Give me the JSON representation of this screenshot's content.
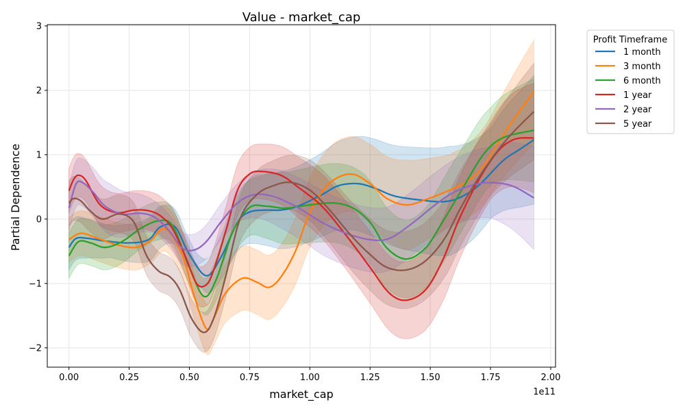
{
  "chart_data": {
    "type": "line",
    "title": "Value - market_cap",
    "xlabel": "market_cap",
    "ylabel": "Partial Dependence",
    "x_offset_text": "1e11",
    "xlim": [
      -0.09,
      2.02
    ],
    "ylim": [
      -2.3,
      3.02
    ],
    "x_ticks": [
      0.0,
      0.25,
      0.5,
      0.75,
      1.0,
      1.25,
      1.5,
      1.75,
      2.0
    ],
    "x_tick_labels": [
      "0.00",
      "0.25",
      "0.50",
      "0.75",
      "1.00",
      "1.25",
      "1.50",
      "1.75",
      "2.00"
    ],
    "y_ticks": [
      -2,
      -1,
      0,
      1,
      2,
      3
    ],
    "y_tick_labels": [
      "−2",
      "−1",
      "0",
      "1",
      "2",
      "3"
    ],
    "grid": true,
    "legend": {
      "title": "Profit Timeframe",
      "placement": "outside-right"
    },
    "series": [
      {
        "name": "1 month",
        "color": "#1f77b4",
        "points": [
          [
            0,
            -0.44
          ],
          [
            0.03,
            -0.3
          ],
          [
            0.08,
            -0.3
          ],
          [
            0.15,
            -0.34
          ],
          [
            0.25,
            -0.37
          ],
          [
            0.33,
            -0.32
          ],
          [
            0.38,
            -0.12
          ],
          [
            0.44,
            -0.12
          ],
          [
            0.5,
            -0.55
          ],
          [
            0.57,
            -0.88
          ],
          [
            0.63,
            -0.6
          ],
          [
            0.7,
            -0.05
          ],
          [
            0.75,
            0.11
          ],
          [
            0.82,
            0.14
          ],
          [
            0.88,
            0.14
          ],
          [
            0.95,
            0.2
          ],
          [
            1.05,
            0.38
          ],
          [
            1.12,
            0.52
          ],
          [
            1.2,
            0.55
          ],
          [
            1.27,
            0.48
          ],
          [
            1.35,
            0.36
          ],
          [
            1.45,
            0.3
          ],
          [
            1.55,
            0.27
          ],
          [
            1.62,
            0.33
          ],
          [
            1.7,
            0.52
          ],
          [
            1.8,
            0.9
          ],
          [
            1.87,
            1.08
          ],
          [
            1.93,
            1.23
          ]
        ],
        "band": [
          0.35,
          0.25,
          0.35,
          0.2,
          0.45,
          0.6,
          0.65,
          0.75,
          0.8,
          0.85,
          0.7,
          1.0
        ]
      },
      {
        "name": "3 month",
        "color": "#ff7f0e",
        "points": [
          [
            0,
            -0.32
          ],
          [
            0.05,
            -0.22
          ],
          [
            0.12,
            -0.3
          ],
          [
            0.2,
            -0.4
          ],
          [
            0.28,
            -0.44
          ],
          [
            0.34,
            -0.33
          ],
          [
            0.4,
            -0.15
          ],
          [
            0.47,
            -0.55
          ],
          [
            0.52,
            -1.2
          ],
          [
            0.57,
            -1.7
          ],
          [
            0.6,
            -1.55
          ],
          [
            0.65,
            -1.15
          ],
          [
            0.72,
            -0.92
          ],
          [
            0.78,
            -0.98
          ],
          [
            0.83,
            -1.06
          ],
          [
            0.88,
            -0.9
          ],
          [
            0.94,
            -0.5
          ],
          [
            1.0,
            0.1
          ],
          [
            1.08,
            0.55
          ],
          [
            1.17,
            0.7
          ],
          [
            1.25,
            0.55
          ],
          [
            1.32,
            0.32
          ],
          [
            1.4,
            0.22
          ],
          [
            1.48,
            0.3
          ],
          [
            1.58,
            0.45
          ],
          [
            1.65,
            0.58
          ],
          [
            1.72,
            0.82
          ],
          [
            1.82,
            1.4
          ],
          [
            1.93,
            1.98
          ]
        ],
        "band": [
          0.35,
          0.35,
          0.35,
          0.35,
          0.5,
          0.5,
          0.55,
          0.6,
          0.7,
          0.55,
          0.6,
          0.8
        ]
      },
      {
        "name": "6 month",
        "color": "#2ca02c",
        "points": [
          [
            0,
            -0.57
          ],
          [
            0.04,
            -0.35
          ],
          [
            0.09,
            -0.37
          ],
          [
            0.15,
            -0.44
          ],
          [
            0.22,
            -0.35
          ],
          [
            0.3,
            -0.14
          ],
          [
            0.37,
            -0.03
          ],
          [
            0.43,
            -0.1
          ],
          [
            0.5,
            -0.75
          ],
          [
            0.56,
            -1.2
          ],
          [
            0.61,
            -0.95
          ],
          [
            0.68,
            -0.2
          ],
          [
            0.75,
            0.18
          ],
          [
            0.82,
            0.2
          ],
          [
            0.9,
            0.17
          ],
          [
            1.0,
            0.22
          ],
          [
            1.1,
            0.25
          ],
          [
            1.18,
            0.17
          ],
          [
            1.25,
            -0.05
          ],
          [
            1.32,
            -0.45
          ],
          [
            1.4,
            -0.62
          ],
          [
            1.48,
            -0.45
          ],
          [
            1.55,
            -0.05
          ],
          [
            1.63,
            0.45
          ],
          [
            1.72,
            1.0
          ],
          [
            1.8,
            1.26
          ],
          [
            1.93,
            1.38
          ]
        ],
        "band": [
          0.35,
          0.35,
          0.3,
          0.25,
          0.4,
          0.55,
          0.6,
          0.65,
          0.6,
          0.65,
          0.6,
          0.8
        ]
      },
      {
        "name": "1 year",
        "color": "#d62728",
        "points": [
          [
            0,
            0.44
          ],
          [
            0.02,
            0.62
          ],
          [
            0.04,
            0.68
          ],
          [
            0.07,
            0.6
          ],
          [
            0.13,
            0.22
          ],
          [
            0.2,
            0.1
          ],
          [
            0.27,
            0.14
          ],
          [
            0.33,
            0.13
          ],
          [
            0.38,
            0.05
          ],
          [
            0.43,
            -0.15
          ],
          [
            0.48,
            -0.55
          ],
          [
            0.53,
            -1.0
          ],
          [
            0.57,
            -1.02
          ],
          [
            0.6,
            -0.8
          ],
          [
            0.65,
            -0.2
          ],
          [
            0.7,
            0.45
          ],
          [
            0.75,
            0.7
          ],
          [
            0.8,
            0.74
          ],
          [
            0.88,
            0.68
          ],
          [
            0.95,
            0.5
          ],
          [
            1.05,
            0.2
          ],
          [
            1.15,
            -0.25
          ],
          [
            1.25,
            -0.75
          ],
          [
            1.33,
            -1.15
          ],
          [
            1.4,
            -1.26
          ],
          [
            1.48,
            -1.1
          ],
          [
            1.55,
            -0.65
          ],
          [
            1.62,
            0.0
          ],
          [
            1.7,
            0.6
          ],
          [
            1.78,
            1.05
          ],
          [
            1.85,
            1.24
          ],
          [
            1.93,
            1.26
          ]
        ],
        "band": [
          0.35,
          0.3,
          0.3,
          0.3,
          0.4,
          0.45,
          0.5,
          0.55,
          0.6,
          0.65,
          0.6,
          0.85
        ]
      },
      {
        "name": "2 year",
        "color": "#9467bd",
        "points": [
          [
            0,
            0.17
          ],
          [
            0.03,
            0.55
          ],
          [
            0.06,
            0.56
          ],
          [
            0.1,
            0.42
          ],
          [
            0.15,
            0.2
          ],
          [
            0.22,
            0.08
          ],
          [
            0.3,
            0.09
          ],
          [
            0.36,
            0.02
          ],
          [
            0.42,
            -0.2
          ],
          [
            0.47,
            -0.45
          ],
          [
            0.52,
            -0.48
          ],
          [
            0.57,
            -0.35
          ],
          [
            0.63,
            -0.05
          ],
          [
            0.7,
            0.25
          ],
          [
            0.77,
            0.38
          ],
          [
            0.85,
            0.35
          ],
          [
            0.95,
            0.18
          ],
          [
            1.05,
            -0.05
          ],
          [
            1.15,
            -0.22
          ],
          [
            1.25,
            -0.32
          ],
          [
            1.33,
            -0.3
          ],
          [
            1.42,
            -0.08
          ],
          [
            1.52,
            0.22
          ],
          [
            1.6,
            0.42
          ],
          [
            1.7,
            0.55
          ],
          [
            1.78,
            0.56
          ],
          [
            1.85,
            0.5
          ],
          [
            1.93,
            0.33
          ]
        ],
        "band": [
          0.35,
          0.4,
          0.25,
          0.25,
          0.3,
          0.45,
          0.5,
          0.5,
          0.5,
          0.5,
          0.55,
          0.8
        ]
      },
      {
        "name": "5 year",
        "color": "#8c564b",
        "points": [
          [
            0,
            0.25
          ],
          [
            0.02,
            0.32
          ],
          [
            0.05,
            0.28
          ],
          [
            0.09,
            0.12
          ],
          [
            0.14,
            0.0
          ],
          [
            0.21,
            0.08
          ],
          [
            0.27,
            -0.05
          ],
          [
            0.32,
            -0.55
          ],
          [
            0.37,
            -0.8
          ],
          [
            0.42,
            -0.9
          ],
          [
            0.46,
            -1.1
          ],
          [
            0.51,
            -1.55
          ],
          [
            0.56,
            -1.76
          ],
          [
            0.6,
            -1.55
          ],
          [
            0.65,
            -0.9
          ],
          [
            0.71,
            0.0
          ],
          [
            0.78,
            0.38
          ],
          [
            0.85,
            0.52
          ],
          [
            0.92,
            0.57
          ],
          [
            1.0,
            0.45
          ],
          [
            1.08,
            0.15
          ],
          [
            1.17,
            -0.25
          ],
          [
            1.25,
            -0.55
          ],
          [
            1.32,
            -0.75
          ],
          [
            1.4,
            -0.79
          ],
          [
            1.48,
            -0.65
          ],
          [
            1.56,
            -0.3
          ],
          [
            1.63,
            0.2
          ],
          [
            1.72,
            0.75
          ],
          [
            1.82,
            1.25
          ],
          [
            1.93,
            1.67
          ]
        ],
        "band": [
          0.35,
          0.3,
          0.3,
          0.3,
          0.35,
          0.4,
          0.5,
          0.55,
          0.6,
          0.6,
          0.55,
          0.75
        ]
      }
    ]
  }
}
